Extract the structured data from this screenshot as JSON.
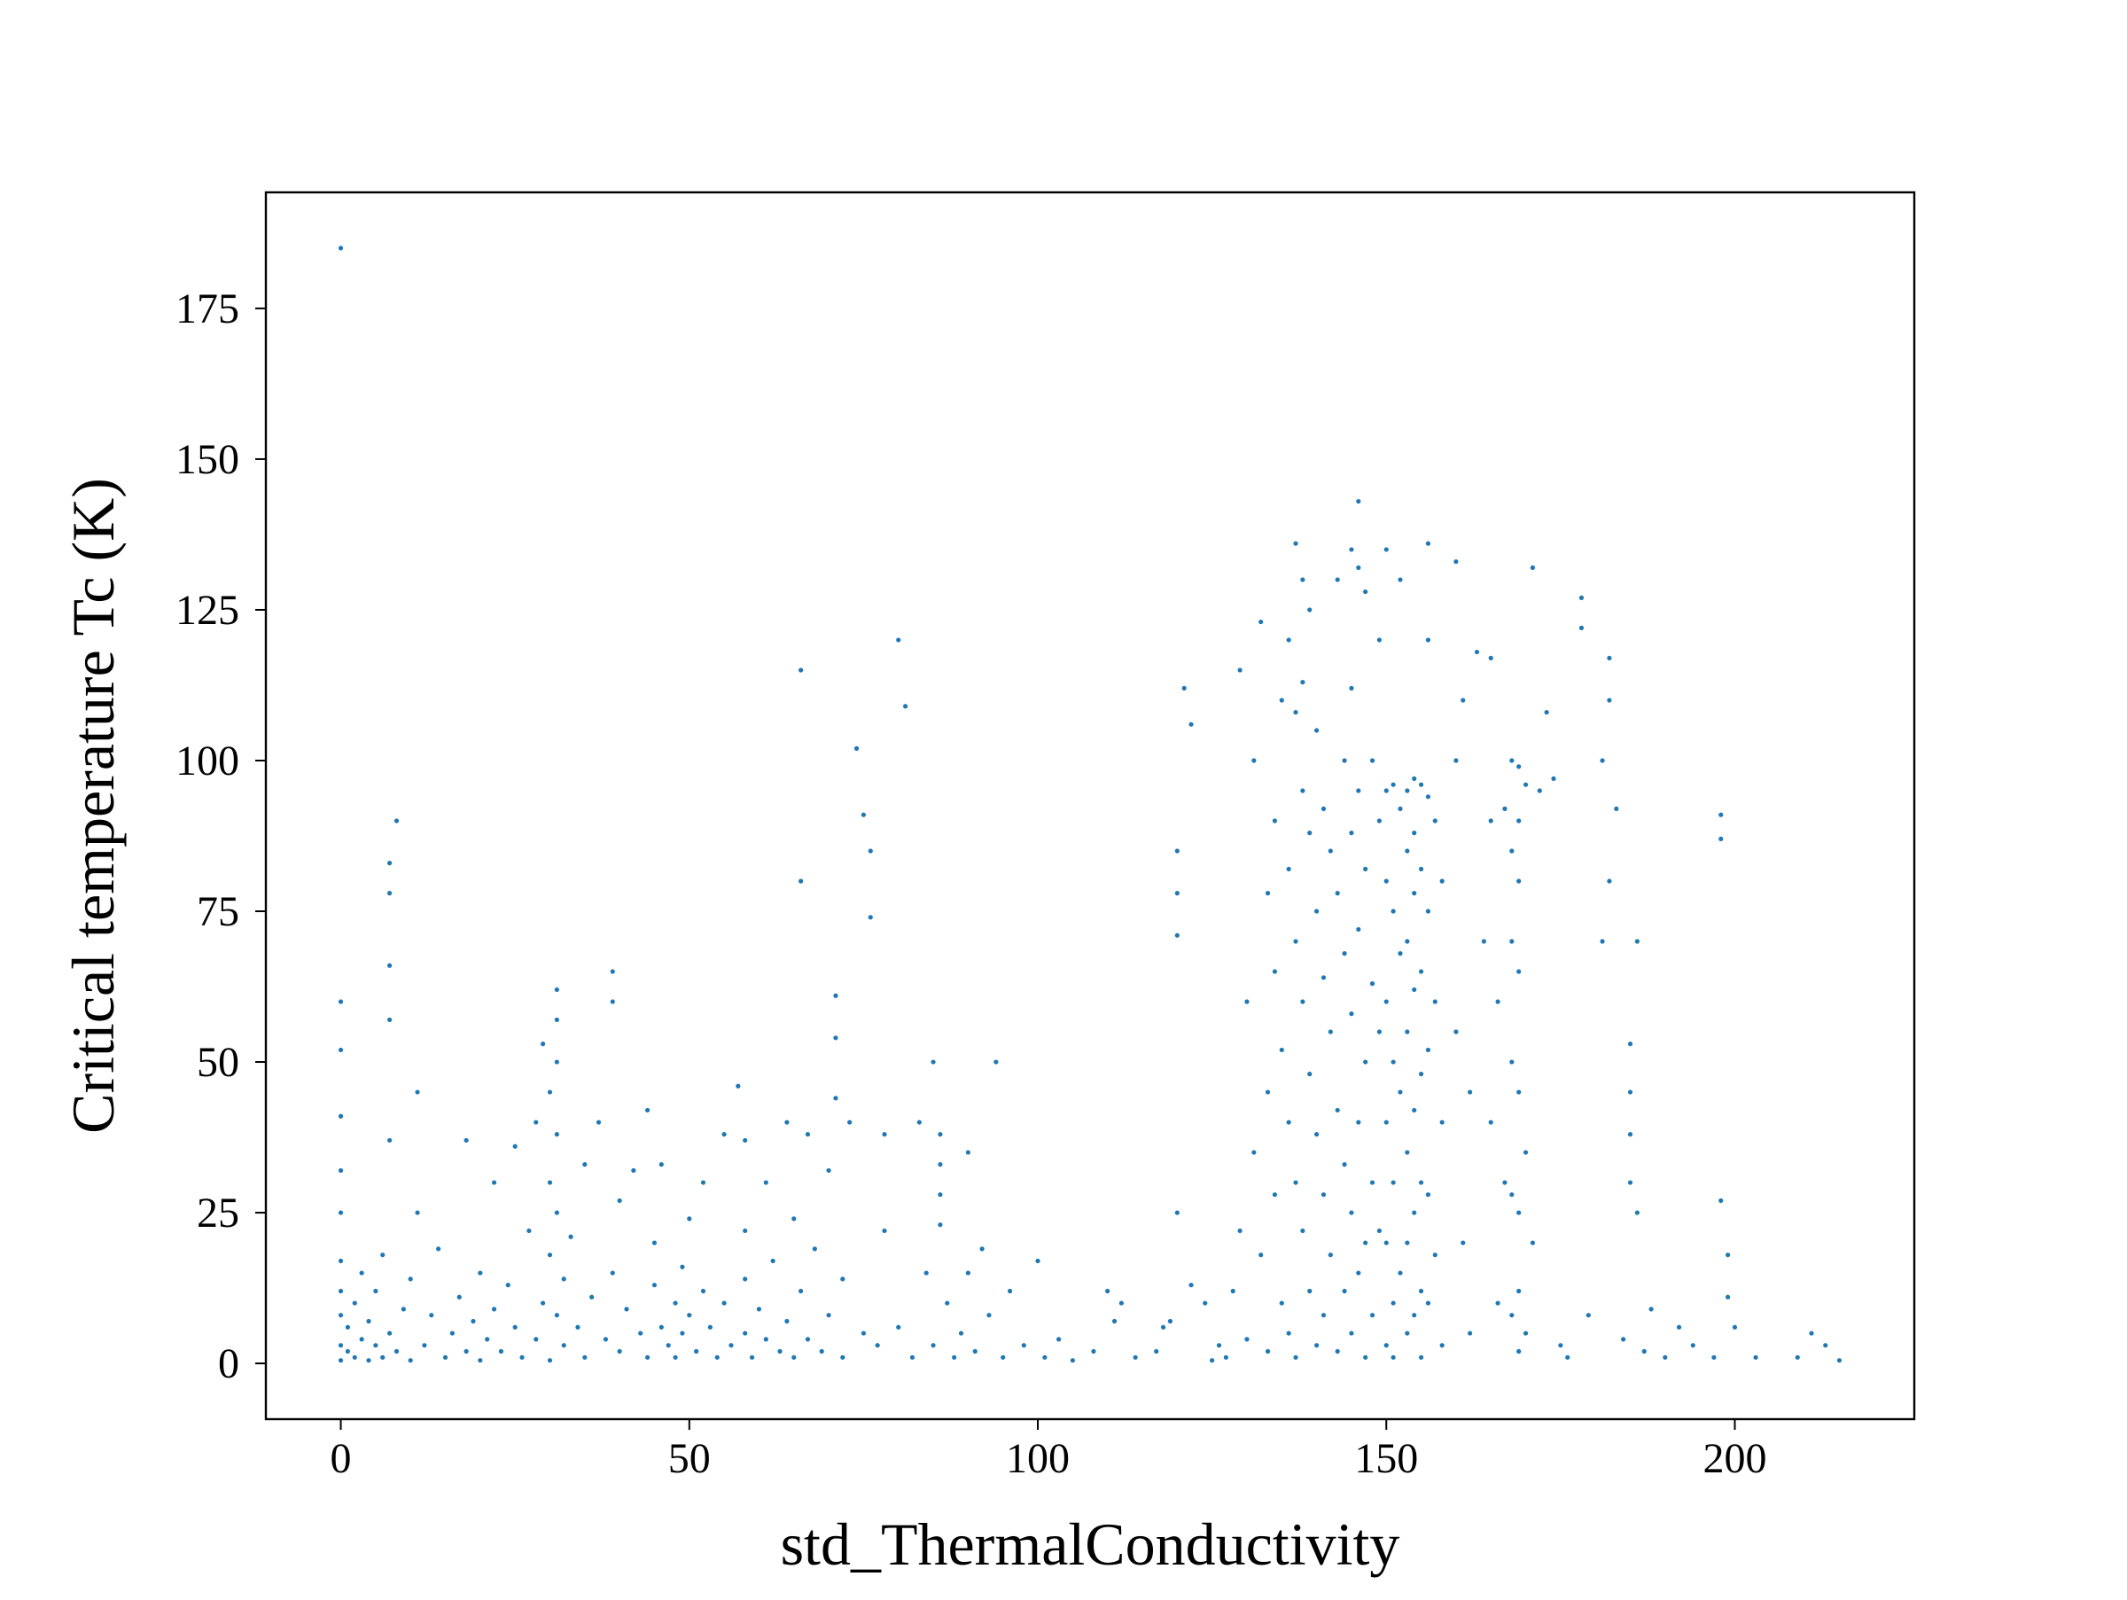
{
  "chart_data": {
    "type": "scatter",
    "xlabel": "std_ThermalConductivity",
    "ylabel": "Critical temperature Tc (K)",
    "color": "#1f77b4",
    "xlim": [
      -10.75,
      225.75
    ],
    "ylim": [
      -9.25,
      194.25
    ],
    "xticks": [
      0,
      50,
      100,
      150,
      200
    ],
    "yticks": [
      0,
      25,
      50,
      75,
      100,
      125,
      150,
      175
    ],
    "x": [
      0,
      0,
      0,
      0,
      0,
      0,
      0,
      0,
      0,
      0,
      0,
      1,
      1,
      2,
      2,
      3,
      3,
      4,
      4,
      5,
      5,
      6,
      6,
      7,
      7,
      7,
      7,
      7,
      7,
      8,
      8,
      9,
      10,
      10,
      11,
      11,
      12,
      13,
      14,
      15,
      16,
      17,
      18,
      18,
      19,
      20,
      20,
      21,
      22,
      22,
      23,
      24,
      25,
      25,
      26,
      27,
      28,
      28,
      29,
      29,
      30,
      30,
      30,
      30,
      31,
      31,
      31,
      31,
      31,
      31,
      32,
      32,
      33,
      34,
      35,
      35,
      36,
      37,
      38,
      39,
      39,
      39,
      40,
      40,
      41,
      42,
      43,
      44,
      44,
      45,
      45,
      46,
      46,
      47,
      48,
      48,
      49,
      49,
      50,
      50,
      51,
      52,
      52,
      53,
      54,
      55,
      55,
      56,
      57,
      58,
      58,
      58,
      58,
      59,
      60,
      61,
      61,
      62,
      63,
      64,
      64,
      65,
      65,
      66,
      66,
      66,
      67,
      67,
      68,
      69,
      70,
      70,
      71,
      71,
      71,
      72,
      72,
      73,
      74,
      75,
      75,
      76,
      76,
      77,
      78,
      78,
      80,
      80,
      81,
      82,
      83,
      84,
      85,
      85,
      86,
      86,
      86,
      86,
      87,
      88,
      89,
      90,
      90,
      91,
      92,
      93,
      94,
      95,
      96,
      98,
      100,
      101,
      103,
      105,
      108,
      110,
      111,
      112,
      114,
      117,
      118,
      119,
      120,
      120,
      120,
      120,
      121,
      122,
      122,
      124,
      125,
      126,
      127,
      128,
      129,
      129,
      130,
      130,
      131,
      131,
      132,
      132,
      133,
      133,
      133,
      134,
      134,
      134,
      135,
      135,
      135,
      136,
      136,
      136,
      136,
      137,
      137,
      137,
      137,
      137,
      138,
      138,
      138,
      138,
      138,
      139,
      139,
      139,
      139,
      140,
      140,
      140,
      140,
      141,
      141,
      141,
      141,
      142,
      142,
      142,
      143,
      143,
      143,
      143,
      144,
      144,
      144,
      144,
      145,
      145,
      145,
      145,
      145,
      145,
      146,
      146,
      146,
      146,
      146,
      146,
      147,
      147,
      147,
      147,
      147,
      148,
      148,
      148,
      148,
      149,
      149,
      149,
      149,
      150,
      150,
      150,
      150,
      150,
      150,
      150,
      151,
      151,
      151,
      151,
      151,
      151,
      152,
      152,
      152,
      152,
      152,
      153,
      153,
      153,
      153,
      153,
      153,
      153,
      154,
      154,
      154,
      154,
      154,
      154,
      154,
      155,
      155,
      155,
      155,
      155,
      155,
      155,
      156,
      156,
      156,
      156,
      156,
      156,
      156,
      157,
      157,
      157,
      158,
      158,
      158,
      160,
      160,
      160,
      161,
      161,
      162,
      162,
      163,
      164,
      165,
      165,
      165,
      166,
      166,
      167,
      167,
      168,
      168,
      168,
      168,
      168,
      168,
      169,
      169,
      169,
      169,
      169,
      169,
      169,
      169,
      170,
      170,
      170,
      171,
      171,
      172,
      173,
      174,
      175,
      176,
      178,
      178,
      179,
      181,
      181,
      182,
      182,
      182,
      183,
      184,
      185,
      185,
      185,
      185,
      186,
      186,
      187,
      188,
      190,
      192,
      194,
      197,
      198,
      198,
      198,
      199,
      199,
      200,
      203,
      209,
      211,
      213,
      215
    ],
    "values": [
      0.5,
      3,
      8,
      12,
      17,
      25,
      32,
      41,
      52,
      60,
      185,
      2,
      6,
      1,
      10,
      4,
      15,
      0.5,
      7,
      3,
      12,
      1,
      18,
      5,
      37,
      57,
      66,
      78,
      83,
      90,
      2,
      9,
      0.5,
      14,
      25,
      45,
      3,
      8,
      19,
      1,
      5,
      11,
      2,
      37,
      7,
      15,
      0.5,
      4,
      30,
      9,
      2,
      13,
      36,
      6,
      1,
      22,
      40,
      4,
      10,
      53,
      0.5,
      18,
      30,
      45,
      57,
      62,
      50,
      38,
      25,
      8,
      3,
      14,
      21,
      6,
      1,
      33,
      11,
      40,
      4,
      65,
      60,
      15,
      2,
      27,
      9,
      32,
      5,
      42,
      1,
      13,
      20,
      6,
      33,
      3,
      10,
      1,
      16,
      5,
      8,
      24,
      2,
      12,
      30,
      6,
      1,
      38,
      10,
      3,
      46,
      37,
      22,
      14,
      5,
      1,
      9,
      4,
      30,
      17,
      2,
      7,
      40,
      24,
      1,
      115,
      80,
      12,
      38,
      4,
      19,
      2,
      32,
      8,
      61,
      54,
      44,
      14,
      1,
      40,
      102,
      91,
      5,
      85,
      74,
      3,
      38,
      22,
      120,
      6,
      109,
      1,
      40,
      15,
      50,
      3,
      38,
      33,
      28,
      23,
      10,
      1,
      5,
      35,
      15,
      2,
      19,
      8,
      50,
      1,
      12,
      3,
      17,
      1,
      4,
      0.5,
      2,
      12,
      7,
      10,
      1,
      2,
      6,
      7,
      85,
      78,
      71,
      25,
      112,
      106,
      13,
      10,
      0.5,
      3,
      1,
      12,
      22,
      115,
      60,
      4,
      100,
      35,
      123,
      18,
      78,
      45,
      2,
      90,
      65,
      28,
      110,
      52,
      10,
      120,
      82,
      40,
      5,
      136,
      108,
      70,
      30,
      1,
      130,
      113,
      95,
      60,
      22,
      125,
      88,
      48,
      12,
      105,
      75,
      38,
      3,
      92,
      64,
      28,
      8,
      85,
      55,
      18,
      130,
      78,
      42,
      2,
      100,
      68,
      33,
      12,
      135,
      112,
      88,
      58,
      25,
      5,
      143,
      132,
      95,
      72,
      40,
      15,
      128,
      82,
      50,
      20,
      1,
      100,
      63,
      30,
      8,
      120,
      90,
      55,
      22,
      135,
      95,
      80,
      60,
      40,
      20,
      3,
      96,
      75,
      50,
      30,
      10,
      1,
      130,
      92,
      68,
      45,
      15,
      95,
      85,
      70,
      55,
      35,
      20,
      5,
      97,
      88,
      78,
      62,
      42,
      25,
      8,
      96,
      82,
      65,
      48,
      30,
      12,
      1,
      136,
      120,
      94,
      75,
      52,
      28,
      10,
      90,
      60,
      18,
      80,
      40,
      3,
      133,
      100,
      55,
      110,
      20,
      45,
      5,
      118,
      70,
      117,
      90,
      40,
      60,
      10,
      92,
      30,
      100,
      85,
      70,
      50,
      28,
      8,
      99,
      90,
      80,
      65,
      45,
      25,
      12,
      2,
      96,
      35,
      5,
      132,
      20,
      95,
      108,
      97,
      3,
      1,
      127,
      122,
      8,
      100,
      70,
      117,
      110,
      80,
      92,
      4,
      53,
      45,
      38,
      30,
      70,
      25,
      2,
      9,
      1,
      6,
      3,
      1,
      91,
      87,
      27,
      18,
      11,
      6,
      1,
      1,
      5,
      3,
      0.5
    ]
  }
}
